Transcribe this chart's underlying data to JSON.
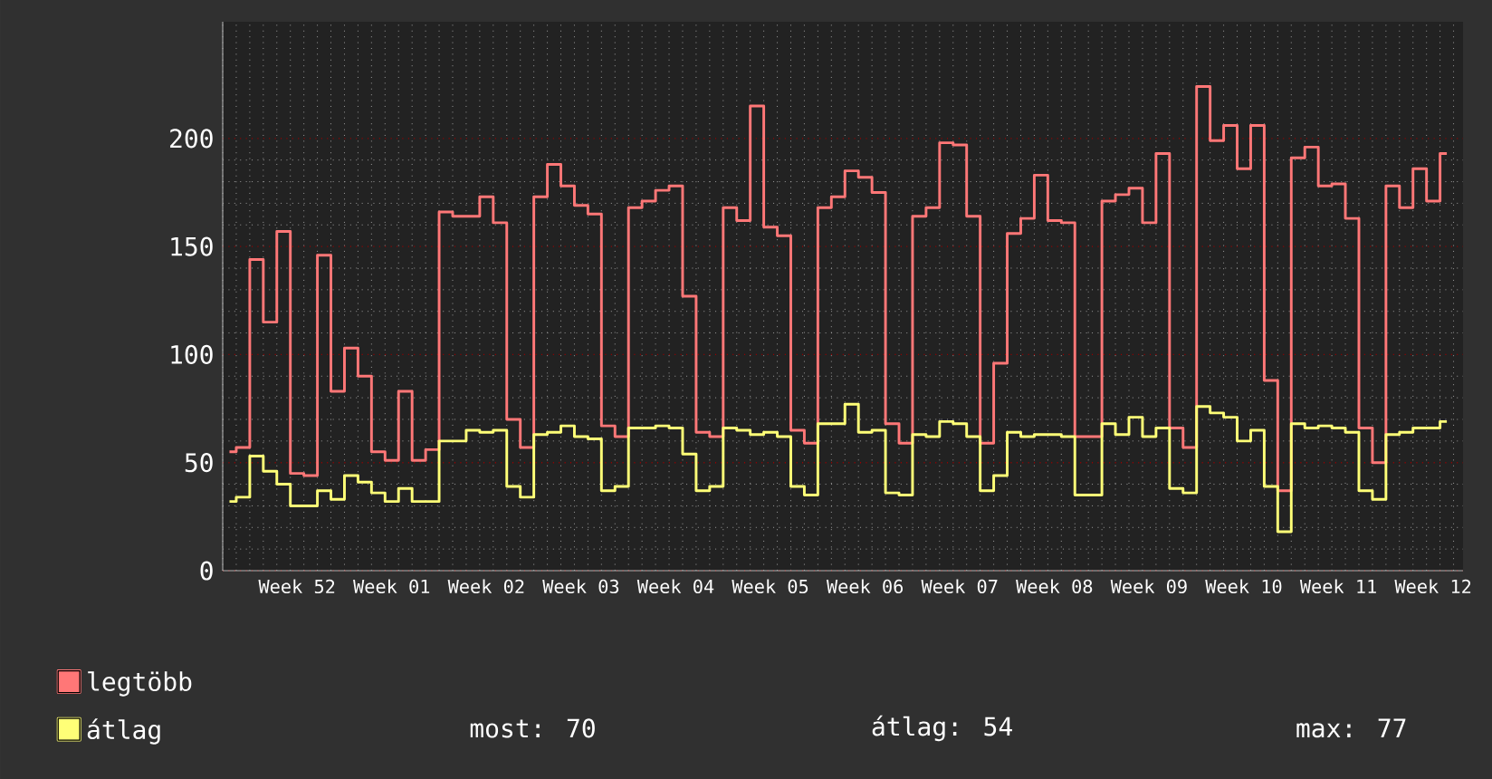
{
  "chart_data": {
    "type": "step",
    "categories": [
      null,
      null,
      null,
      null,
      null,
      "Week 52",
      null,
      null,
      null,
      null,
      null,
      null,
      "Week 01",
      null,
      null,
      null,
      null,
      null,
      null,
      "Week 02",
      null,
      null,
      null,
      null,
      null,
      null,
      "Week 03",
      null,
      null,
      null,
      null,
      null,
      null,
      "Week 04",
      null,
      null,
      null,
      null,
      null,
      null,
      "Week 05",
      null,
      null,
      null,
      null,
      null,
      null,
      "Week 06",
      null,
      null,
      null,
      null,
      null,
      null,
      "Week 07",
      null,
      null,
      null,
      null,
      null,
      null,
      "Week 08",
      null,
      null,
      null,
      null,
      null,
      null,
      "Week 09",
      null,
      null,
      null,
      null,
      null,
      null,
      "Week 10",
      null,
      null,
      null,
      null,
      null,
      null,
      "Week 11",
      null,
      null,
      null,
      null,
      null,
      null,
      "Week 12",
      null
    ],
    "series": [
      {
        "name": "legtöbb",
        "color": "#ff7777",
        "values": [
          55,
          57,
          144,
          115,
          157,
          45,
          44,
          146,
          83,
          103,
          90,
          55,
          51,
          83,
          51,
          56,
          166,
          164,
          164,
          173,
          161,
          70,
          57,
          173,
          188,
          178,
          169,
          165,
          67,
          62,
          168,
          171,
          176,
          178,
          127,
          64,
          62,
          168,
          162,
          215,
          159,
          155,
          65,
          59,
          168,
          173,
          185,
          182,
          175,
          68,
          59,
          164,
          168,
          198,
          197,
          164,
          59,
          96,
          156,
          163,
          183,
          162,
          161,
          62,
          62,
          171,
          174,
          177,
          161,
          193,
          66,
          57,
          224,
          199,
          206,
          186,
          206,
          88,
          37,
          191,
          196,
          178,
          179,
          163,
          66,
          50,
          178,
          168,
          186,
          171,
          193
        ]
      },
      {
        "name": "átlag",
        "color": "#ffff77",
        "values": [
          32,
          34,
          53,
          46,
          40,
          30,
          30,
          37,
          33,
          44,
          41,
          36,
          32,
          38,
          32,
          32,
          60,
          60,
          65,
          64,
          65,
          39,
          34,
          63,
          64,
          67,
          62,
          61,
          37,
          39,
          66,
          66,
          67,
          66,
          54,
          37,
          39,
          66,
          65,
          63,
          64,
          62,
          39,
          35,
          68,
          68,
          77,
          64,
          65,
          36,
          35,
          63,
          62,
          69,
          68,
          62,
          37,
          44,
          64,
          62,
          63,
          63,
          62,
          35,
          35,
          68,
          63,
          71,
          62,
          66,
          38,
          36,
          76,
          73,
          71,
          60,
          65,
          39,
          18,
          68,
          66,
          67,
          66,
          64,
          37,
          33,
          63,
          64,
          66,
          66,
          69
        ]
      }
    ],
    "ylim": [
      0,
      254
    ],
    "yticks": [
      0,
      50,
      100,
      150,
      200
    ],
    "grid": true,
    "legend": "bottom left",
    "annotations": [
      "most: 70",
      "átlag: 54",
      "max: 77"
    ]
  }
}
